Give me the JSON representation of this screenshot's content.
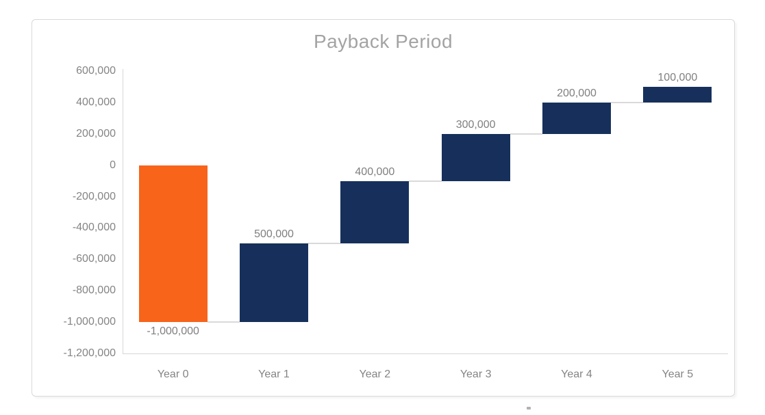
{
  "chart_data": {
    "type": "bar",
    "subtype": "waterfall",
    "title": "Payback Period",
    "categories": [
      "Year 0",
      "Year 1",
      "Year 2",
      "Year 3",
      "Year 4",
      "Year 5"
    ],
    "values": [
      -1000000,
      500000,
      400000,
      300000,
      200000,
      100000
    ],
    "cumulative": [
      -1000000,
      -500000,
      -100000,
      200000,
      400000,
      500000
    ],
    "data_labels": [
      "-1,000,000",
      "500,000",
      "400,000",
      "300,000",
      "200,000",
      "100,000"
    ],
    "y_ticks": [
      {
        "value": 600000,
        "label": "600,000"
      },
      {
        "value": 400000,
        "label": "400,000"
      },
      {
        "value": 200000,
        "label": "200,000"
      },
      {
        "value": 0,
        "label": "0"
      },
      {
        "value": -200000,
        "label": "-200,000"
      },
      {
        "value": -400000,
        "label": "-400,000"
      },
      {
        "value": -600000,
        "label": "-600,000"
      },
      {
        "value": -800000,
        "label": "-800,000"
      },
      {
        "value": -1000000,
        "label": "-1,000,000"
      },
      {
        "value": -1200000,
        "label": "-1,200,000"
      }
    ],
    "ylim": [
      -1200000,
      600000
    ],
    "xlabel": "",
    "ylabel": "",
    "grid": false,
    "legend": false,
    "colors": {
      "decrease_bar": "#F7641A",
      "increase_bar": "#16305B",
      "axis_line": "#D6D6D6",
      "connector": "#D9D9D9",
      "tick_text": "#848484",
      "data_label_text": "#7F7F7F",
      "title_text": "#A3A3A3",
      "chart_border": "#D9D9D9"
    }
  }
}
